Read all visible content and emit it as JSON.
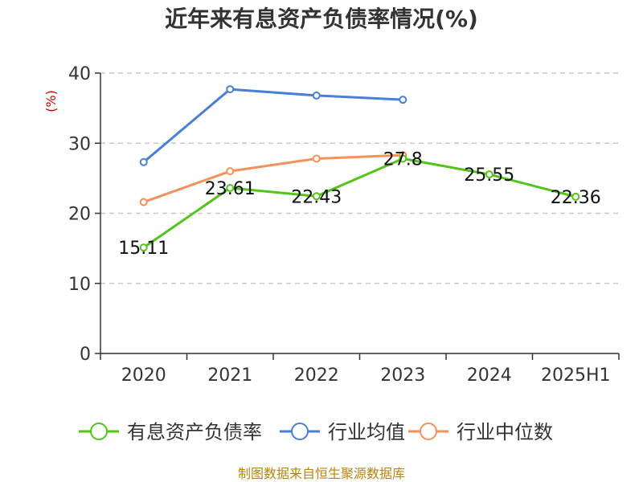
{
  "chart_data": {
    "type": "line",
    "title": "近年来有息资产负债率情况(%)",
    "ylabel": "(%)",
    "categories": [
      "2020",
      "2021",
      "2022",
      "2023",
      "2024",
      "2025H1"
    ],
    "ylim": [
      0,
      40
    ],
    "yticks": [
      0,
      10,
      20,
      30,
      40
    ],
    "grid": true,
    "legend_position": "bottom",
    "series": [
      {
        "name": "有息资产负债率",
        "color": "#52c41a",
        "values": [
          15.11,
          23.61,
          22.43,
          27.8,
          25.55,
          22.36
        ],
        "labels": [
          "15.11",
          "23.61",
          "22.43",
          "27.8",
          "25.55",
          "22.36"
        ]
      },
      {
        "name": "行业均值",
        "color": "#4a7fd8",
        "values": [
          27.3,
          37.7,
          36.8,
          36.2,
          null,
          null
        ]
      },
      {
        "name": "行业中位数",
        "color": "#f4915a",
        "values": [
          21.6,
          26.0,
          27.8,
          28.3,
          null,
          null
        ]
      }
    ],
    "source": "制图数据来自恒生聚源数据库"
  }
}
